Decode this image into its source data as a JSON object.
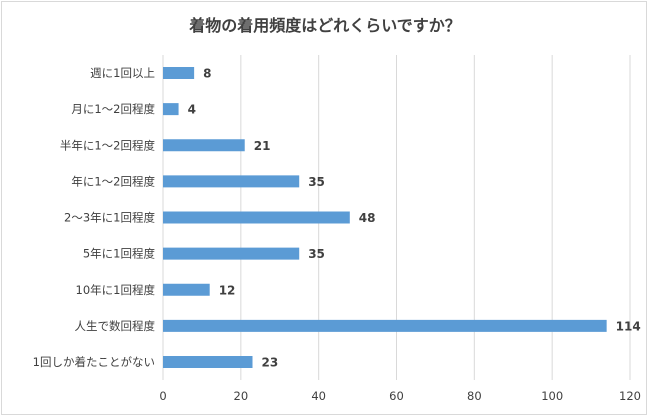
{
  "chart_data": {
    "type": "bar",
    "orientation": "horizontal",
    "title": "着物の着用頻度はどれくらいですか？",
    "categories": [
      "週に1回以上",
      "月に1～2回程度",
      "半年に1～2回程度",
      "年に1～2回程度",
      "2～3年に1回程度",
      "5年に1回程度",
      "10年に1回程度",
      "人生で数回程度",
      "1回しか着たことがない"
    ],
    "values": [
      8,
      4,
      21,
      35,
      48,
      35,
      12,
      114,
      23
    ],
    "xlim": [
      0,
      120
    ],
    "xticks": [
      0,
      20,
      40,
      60,
      80,
      100,
      120
    ],
    "grid": "vertical",
    "legend": "none",
    "bar_color": "#5b9bd5"
  }
}
